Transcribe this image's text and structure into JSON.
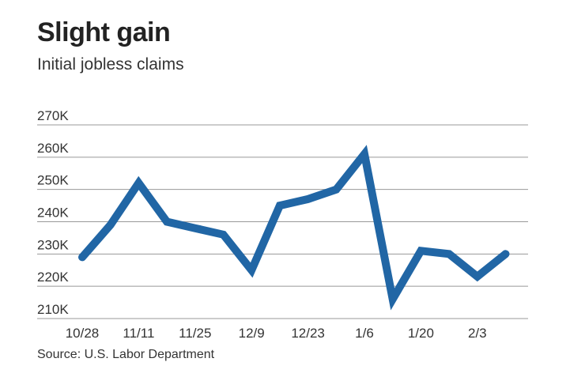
{
  "header": {
    "title": "Slight gain",
    "subtitle": "Initial jobless claims"
  },
  "footer": {
    "source": "Source: U.S. Labor Department"
  },
  "chart_data": {
    "type": "line",
    "title": "Slight gain",
    "subtitle": "Initial jobless claims",
    "xlabel": "",
    "ylabel": "",
    "ylim": [
      210000,
      270000
    ],
    "yticks": [
      {
        "value": 270000,
        "label": "270K"
      },
      {
        "value": 260000,
        "label": "260K"
      },
      {
        "value": 250000,
        "label": "250K"
      },
      {
        "value": 240000,
        "label": "240K"
      },
      {
        "value": 230000,
        "label": "230K"
      },
      {
        "value": 220000,
        "label": "220K"
      },
      {
        "value": 210000,
        "label": "210K"
      }
    ],
    "xticks": [
      {
        "index": 0,
        "label": "10/28"
      },
      {
        "index": 2,
        "label": "11/11"
      },
      {
        "index": 4,
        "label": "11/25"
      },
      {
        "index": 6,
        "label": "12/9"
      },
      {
        "index": 8,
        "label": "12/23"
      },
      {
        "index": 10,
        "label": "1/6"
      },
      {
        "index": 12,
        "label": "1/20"
      },
      {
        "index": 14,
        "label": "2/3"
      }
    ],
    "x": [
      "10/28",
      "11/4",
      "11/11",
      "11/18",
      "11/25",
      "12/2",
      "12/9",
      "12/16",
      "12/23",
      "12/30",
      "1/6",
      "1/13",
      "1/20",
      "1/27",
      "2/3",
      "2/10"
    ],
    "series": [
      {
        "values": [
          229000,
          239000,
          252000,
          240000,
          238000,
          236000,
          225000,
          245000,
          247000,
          250000,
          261000,
          216000,
          231000,
          230000,
          223000,
          230000
        ],
        "color": "#2166a5"
      }
    ],
    "grid": true,
    "gridColor": "#999999"
  }
}
